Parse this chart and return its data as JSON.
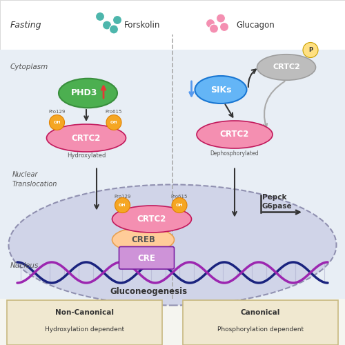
{
  "bg_color": "#f5f5f0",
  "header_bg": "#ffffff",
  "cyto_bg": "#e8eef5",
  "nucleus_bg": "#d0d4e8",
  "box_bg": "#f0e8d0",
  "box_border": "#c8b880",
  "divider_color": "#aaaaaa",
  "title_fasting": "Fasting",
  "label_forskolin": "Forskolin",
  "label_glucagon": "Glucagon",
  "label_cytoplasm": "Cytoplasm",
  "label_nucleus": "Nucleus",
  "label_nuclear": "Nuclear\nTranslocation",
  "label_gluconeogenesis": "Gluconeogenesis",
  "label_non_canonical": "Non-Canonical\nHydroxylation dependent",
  "label_canonical": "Canonical\nPhosphorylation dependent",
  "phd3_color": "#4caf50",
  "phd3_text": "PHD3",
  "siks_color": "#64b5f6",
  "siks_text": "SIKs",
  "crtc2_cyto_color": "#f48fb1",
  "crtc2_text": "CRTC2",
  "crtc2_gray_color": "#bdbdbd",
  "crtc2_nucleus_color": "#f48fb1",
  "creb_color": "#ffcc99",
  "creb_text": "CREB",
  "cre_color": "#ce93d8",
  "cre_text": "CRE",
  "oh_color": "#f5a623",
  "oh_text": "OH",
  "p_color": "#ffe082",
  "p_text": "P",
  "pepck_text": "Pepck\nG6pase",
  "arrow_color": "#333333",
  "down_arrow_color": "#5599ee",
  "up_arrow_color": "#e53935",
  "dna_color1": "#1a237e",
  "dna_color2": "#9c27b0"
}
